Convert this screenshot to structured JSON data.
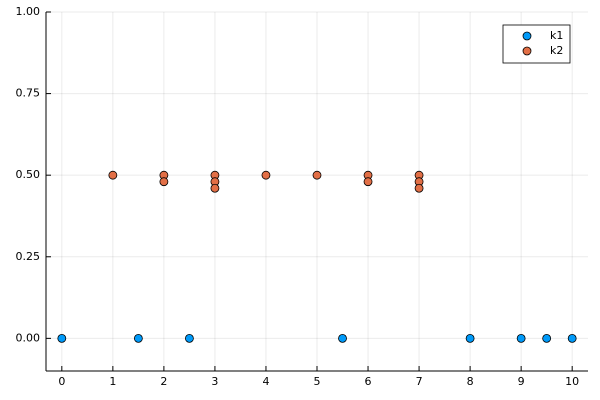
{
  "chart_data": {
    "type": "scatter",
    "series": [
      {
        "name": "k1",
        "color": "#009af9",
        "x": [
          0,
          1.5,
          2.5,
          5.5,
          8,
          9,
          9.5,
          10
        ],
        "values": [
          0,
          0,
          0,
          0,
          0,
          0,
          0,
          0
        ]
      },
      {
        "name": "k2",
        "color": "#e26f46",
        "x": [
          1,
          2,
          2,
          3,
          3,
          3,
          4,
          5,
          6,
          6,
          7,
          7,
          7
        ],
        "values": [
          0.5,
          0.5,
          0.48,
          0.5,
          0.48,
          0.46,
          0.5,
          0.5,
          0.5,
          0.48,
          0.5,
          0.48,
          0.46
        ]
      }
    ],
    "xlim": [
      -0.31,
      10.31
    ],
    "ylim": [
      -0.1,
      1.0
    ],
    "xticks": [
      0,
      1,
      2,
      3,
      4,
      5,
      6,
      7,
      8,
      9,
      10
    ],
    "yticks": [
      {
        "value": 0,
        "label": "0.00"
      },
      {
        "value": 0.25,
        "label": "0.25"
      },
      {
        "value": 0.5,
        "label": "0.50"
      },
      {
        "value": 0.75,
        "label": "0.75"
      },
      {
        "value": 1.0,
        "label": "1.00"
      }
    ],
    "grid": true,
    "legend": "top-right"
  }
}
